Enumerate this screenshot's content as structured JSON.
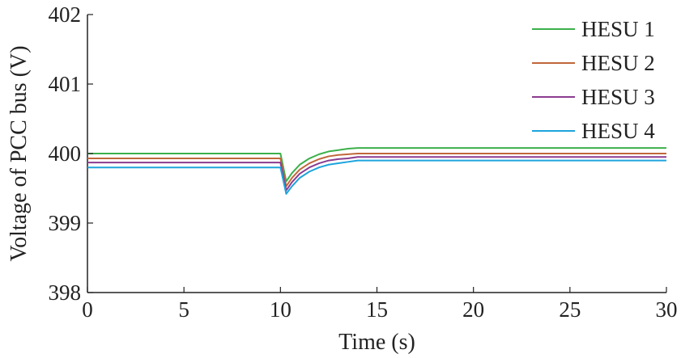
{
  "chart_data": {
    "type": "line",
    "title": "",
    "xlabel": "Time (s)",
    "ylabel": "Voltage of PCC bus (V)",
    "xlim": [
      0,
      30
    ],
    "ylim": [
      398,
      402
    ],
    "xticks": [
      0,
      5,
      10,
      15,
      20,
      25,
      30
    ],
    "yticks": [
      398,
      399,
      400,
      401,
      402
    ],
    "xtick_labels": [
      "0",
      "5",
      "10",
      "15",
      "20",
      "25",
      "30"
    ],
    "ytick_labels": [
      "398",
      "399",
      "400",
      "401",
      "402"
    ],
    "grid": false,
    "legend_position": "top-right",
    "series": [
      {
        "name": "HESU 1",
        "color": "#3cb04a",
        "x": [
          0,
          10,
          10.3,
          10.6,
          11,
          11.5,
          12,
          12.5,
          13,
          13.5,
          14,
          15,
          20,
          25,
          30
        ],
        "y": [
          400.0,
          400.0,
          399.6,
          399.72,
          399.84,
          399.93,
          399.99,
          400.03,
          400.05,
          400.07,
          400.08,
          400.08,
          400.08,
          400.08,
          400.08
        ]
      },
      {
        "name": "HESU 2",
        "color": "#c0673a",
        "x": [
          0,
          10,
          10.3,
          10.6,
          11,
          11.5,
          12,
          12.5,
          13,
          13.5,
          14,
          15,
          20,
          25,
          30
        ],
        "y": [
          399.93,
          399.93,
          399.53,
          399.65,
          399.77,
          399.86,
          399.92,
          399.96,
          399.98,
          399.99,
          400.0,
          400.0,
          400.0,
          400.0,
          400.0
        ]
      },
      {
        "name": "HESU 3",
        "color": "#8b3c8f",
        "x": [
          0,
          10,
          10.3,
          10.6,
          11,
          11.5,
          12,
          12.5,
          13,
          13.5,
          14,
          15,
          20,
          25,
          30
        ],
        "y": [
          399.87,
          399.87,
          399.47,
          399.59,
          399.71,
          399.8,
          399.86,
          399.9,
          399.92,
          399.93,
          399.95,
          399.95,
          399.95,
          399.95,
          399.95
        ]
      },
      {
        "name": "HESU 4",
        "color": "#1da4dc",
        "x": [
          0,
          10,
          10.3,
          10.6,
          11,
          11.5,
          12,
          12.5,
          13,
          13.5,
          14,
          15,
          20,
          25,
          30
        ],
        "y": [
          399.8,
          399.8,
          399.42,
          399.53,
          399.65,
          399.74,
          399.8,
          399.84,
          399.86,
          399.88,
          399.9,
          399.9,
          399.9,
          399.9,
          399.9
        ]
      }
    ]
  }
}
